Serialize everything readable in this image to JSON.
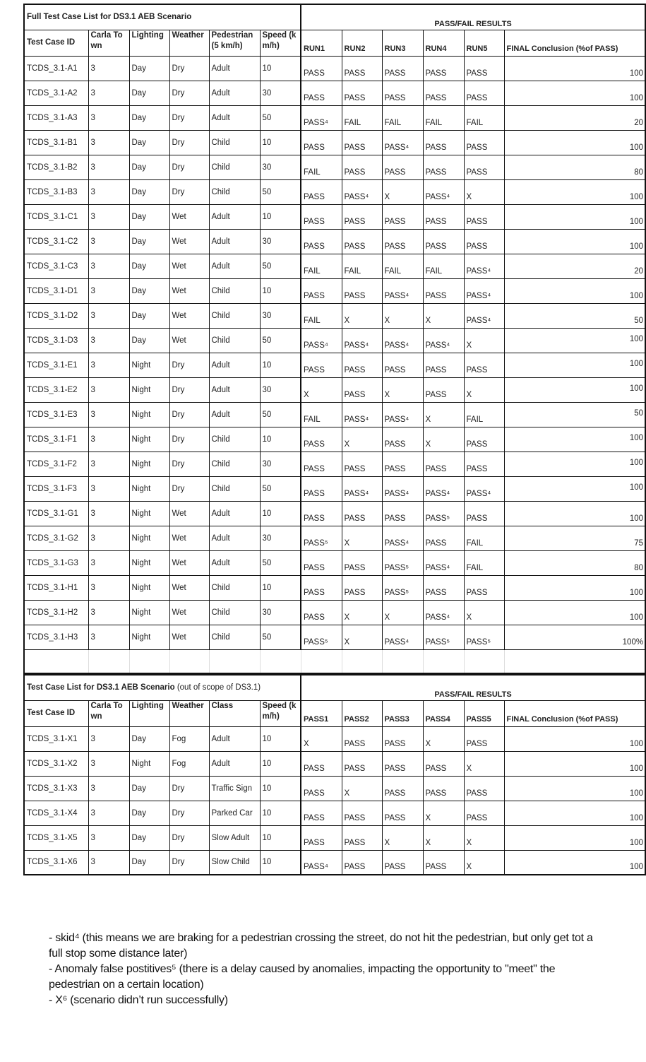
{
  "table1": {
    "title": "Full Test Case List for DS3.1 AEB Scenario",
    "results_title": "PASS/FAIL RESULTS",
    "headers": [
      "Test Case ID",
      "Carla Town",
      "Lighting",
      "Weather",
      "Pedestrian (5 km/h)",
      "Speed (km/h)",
      "RUN1",
      "RUN2",
      "RUN3",
      "RUN4",
      "RUN5",
      "FINAL Conclusion (%of PASS)"
    ],
    "rows": [
      [
        "TCDS_3.1-A1",
        "3",
        "Day",
        "Dry",
        "Adult",
        "10",
        "PASS",
        "PASS",
        "PASS",
        "PASS",
        "PASS",
        "100"
      ],
      [
        "TCDS_3.1-A2",
        "3",
        "Day",
        "Dry",
        "Adult",
        "30",
        "PASS",
        "PASS",
        "PASS",
        "PASS",
        "PASS",
        "100"
      ],
      [
        "TCDS_3.1-A3",
        "3",
        "Day",
        "Dry",
        "Adult",
        "50",
        "PASS⁴",
        "FAIL",
        "FAIL",
        "FAIL",
        "FAIL",
        "20"
      ],
      [
        "TCDS_3.1-B1",
        "3",
        "Day",
        "Dry",
        "Child",
        "10",
        "PASS",
        "PASS",
        "PASS⁴",
        "PASS",
        "PASS",
        "100"
      ],
      [
        "TCDS_3.1-B2",
        "3",
        "Day",
        "Dry",
        "Child",
        "30",
        "FAIL",
        "PASS",
        "PASS",
        "PASS",
        "PASS",
        "80"
      ],
      [
        "TCDS_3.1-B3",
        "3",
        "Day",
        "Dry",
        "Child",
        "50",
        "PASS",
        "PASS⁴",
        "X",
        "PASS⁴",
        "X",
        "100"
      ],
      [
        "TCDS_3.1-C1",
        "3",
        "Day",
        "Wet",
        "Adult",
        "10",
        "PASS",
        "PASS",
        "PASS",
        "PASS",
        "PASS",
        "100"
      ],
      [
        "TCDS_3.1-C2",
        "3",
        "Day",
        "Wet",
        "Adult",
        "30",
        "PASS",
        "PASS",
        "PASS",
        "PASS",
        "PASS",
        "100"
      ],
      [
        "TCDS_3.1-C3",
        "3",
        "Day",
        "Wet",
        "Adult",
        "50",
        "FAIL",
        "FAIL",
        "FAIL",
        "FAIL",
        "PASS⁴",
        "20"
      ],
      [
        "TCDS_3.1-D1",
        "3",
        "Day",
        "Wet",
        "Child",
        "10",
        "PASS",
        "PASS",
        "PASS⁴",
        "PASS",
        "PASS⁴",
        "100"
      ],
      [
        "TCDS_3.1-D2",
        "3",
        "Day",
        "Wet",
        "Child",
        "30",
        "FAIL",
        "X",
        "X",
        "X",
        "PASS⁴",
        "50"
      ],
      [
        "TCDS_3.1-D3",
        "3",
        "Day",
        "Wet",
        "Child",
        "50",
        "PASS⁴",
        "PASS⁴",
        "PASS⁴",
        "PASS⁴",
        "X",
        "100"
      ],
      [
        "TCDS_3.1-E1",
        "3",
        "Night",
        "Dry",
        "Adult",
        "10",
        "PASS",
        "PASS",
        "PASS",
        "PASS",
        "PASS",
        "100"
      ],
      [
        "TCDS_3.1-E2",
        "3",
        "Night",
        "Dry",
        "Adult",
        "30",
        "X",
        "PASS",
        "X",
        "PASS",
        "X",
        "100"
      ],
      [
        "TCDS_3.1-E3",
        "3",
        "Night",
        "Dry",
        "Adult",
        "50",
        "FAIL",
        "PASS⁴",
        "PASS⁴",
        "X",
        "FAIL",
        "50"
      ],
      [
        "TCDS_3.1-F1",
        "3",
        "Night",
        "Dry",
        "Child",
        "10",
        "PASS",
        "X",
        "PASS",
        "X",
        "PASS",
        "100"
      ],
      [
        "TCDS_3.1-F2",
        "3",
        "Night",
        "Dry",
        "Child",
        "30",
        "PASS",
        "PASS",
        "PASS",
        "PASS",
        "PASS",
        "100"
      ],
      [
        "TCDS_3.1-F3",
        "3",
        "Night",
        "Dry",
        "Child",
        "50",
        "PASS",
        "PASS⁴",
        "PASS⁴",
        "PASS⁴",
        "PASS⁴",
        "100"
      ],
      [
        "TCDS_3.1-G1",
        "3",
        "Night",
        "Wet",
        "Adult",
        "10",
        "PASS",
        "PASS",
        "PASS",
        "PASS⁵",
        "PASS",
        "100"
      ],
      [
        "TCDS_3.1-G2",
        "3",
        "Night",
        "Wet",
        "Adult",
        "30",
        "PASS⁵",
        "X",
        "PASS⁴",
        "PASS",
        "FAIL",
        "75"
      ],
      [
        "TCDS_3.1-G3",
        "3",
        "Night",
        "Wet",
        "Adult",
        "50",
        "PASS",
        "PASS",
        "PASS⁵",
        "PASS⁴",
        "FAIL",
        "80"
      ],
      [
        "TCDS_3.1-H1",
        "3",
        "Night",
        "Wet",
        "Child",
        "10",
        "PASS",
        "PASS",
        "PASS⁵",
        "PASS",
        "PASS",
        "100"
      ],
      [
        "TCDS_3.1-H2",
        "3",
        "Night",
        "Wet",
        "Child",
        "30",
        "PASS",
        "X",
        "X",
        "PASS⁴",
        "X",
        "100"
      ],
      [
        "TCDS_3.1-H3",
        "3",
        "Night",
        "Wet",
        "Child",
        "50",
        "PASS⁵",
        "X",
        "PASS⁴",
        "PASS⁵",
        "PASS⁵",
        "100%"
      ]
    ]
  },
  "table2": {
    "title": "Test Case List for DS3.1 AEB Scenario",
    "title_note": "(out of scope of DS3.1)",
    "results_title": "PASS/FAIL RESULTS",
    "headers": [
      "Test Case ID",
      "Carla Town",
      "Lighting",
      "Weather",
      "Class",
      "Speed (km/h)",
      "PASS1",
      "PASS2",
      "PASS3",
      "PASS4",
      "PASS5",
      "FINAL Conclusion (%of PASS)"
    ],
    "rows": [
      [
        "TCDS_3.1-X1",
        "3",
        "Day",
        "Fog",
        "Adult",
        "10",
        "X",
        "PASS",
        "PASS",
        "X",
        "PASS",
        "100"
      ],
      [
        "TCDS_3.1-X2",
        "3",
        "Night",
        "Fog",
        "Adult",
        "10",
        "PASS",
        "PASS",
        "PASS",
        "PASS",
        "X",
        "100"
      ],
      [
        "TCDS_3.1-X3",
        "3",
        "Day",
        "Dry",
        "Traffic Sign",
        "10",
        "PASS",
        "X",
        "PASS",
        "PASS",
        "PASS",
        "100"
      ],
      [
        "TCDS_3.1-X4",
        "3",
        "Day",
        "Dry",
        "Parked Car",
        "10",
        "PASS",
        "PASS",
        "PASS",
        "X",
        "PASS",
        "100"
      ],
      [
        "TCDS_3.1-X5",
        "3",
        "Day",
        "Dry",
        "Slow Adult",
        "10",
        "PASS",
        "PASS",
        "X",
        "X",
        "X",
        "100"
      ],
      [
        "TCDS_3.1-X6",
        "3",
        "Day",
        "Dry",
        "Slow Child",
        "10",
        "PASS⁴",
        "PASS",
        "PASS",
        "PASS",
        "X",
        "100"
      ]
    ]
  },
  "footnotes": [
    "- skid⁴ (this means we are braking for a pedestrian crossing the street, do not hit the pedestrian, but only get tot a full stop some distance later)",
    "- Anomaly false postitives⁵ (there is a delay caused by anomalies, impacting the opportunity to \"meet\" the pedestrian on a certain location)",
    "- X⁶ (scenario didn’t run successfully)"
  ]
}
